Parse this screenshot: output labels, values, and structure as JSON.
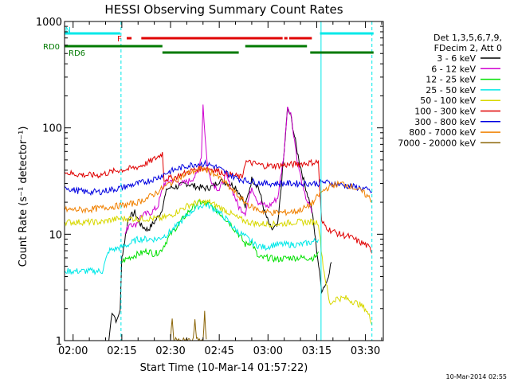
{
  "chart_data": {
    "type": "line",
    "title": "HESSI Observing Summary Count Rates",
    "xlabel": "Start Time (10-Mar-14 01:57:22)",
    "ylabel": "Count Rate (s⁻¹ detector⁻¹)",
    "y_scale": "log",
    "ylim": [
      1,
      1000
    ],
    "xlim": [
      "01:57:22",
      "03:35:30"
    ],
    "x_ticks": [
      "02:00",
      "02:15",
      "02:30",
      "02:45",
      "03:00",
      "03:15",
      "03:30"
    ],
    "y_ticks": [
      "1",
      "10",
      "100",
      "1000"
    ],
    "timestamp": "10-Mar-2014 02:55",
    "legend": {
      "position": "right",
      "header": [
        "Det 1,3,5,6,7,9,",
        "FDecim 2, Att 0"
      ]
    },
    "colors": {
      "3-6": "#000000",
      "6-12": "#d000d0",
      "12-25": "#00e000",
      "25-50": "#00e8e8",
      "50-100": "#d8d800",
      "100-300": "#e00000",
      "300-800": "#0000e0",
      "800-7000": "#f08000",
      "7000-20000": "#8b6508",
      "flag_rd0": "#007a00",
      "flag_rd6": "#007a00",
      "flag_flare": "#e00000",
      "flag_night": "#00e8e8"
    },
    "flags": {
      "N": {
        "label": "N",
        "intervals": [
          [
            "01:57:30",
            "02:14:30"
          ],
          [
            "03:16:00",
            "03:32:30"
          ]
        ]
      },
      "F": {
        "label": "F",
        "intervals": [
          [
            "02:16:30",
            "02:18:00"
          ],
          [
            "02:21:00",
            "03:04:30"
          ],
          [
            "03:05:00",
            "03:06:00"
          ],
          [
            "03:06:30",
            "03:13:30"
          ]
        ]
      },
      "RD0": {
        "label": "RD0",
        "intervals": [
          [
            "01:57:30",
            "02:27:30"
          ],
          [
            "02:53:00",
            "03:12:00"
          ]
        ]
      },
      "RD6": {
        "label": "RD6",
        "intervals": [
          [
            "02:27:30",
            "02:51:00"
          ],
          [
            "03:13:00",
            "03:32:30"
          ]
        ]
      }
    },
    "vlines": [
      "02:14:45",
      "03:16:20",
      "03:32:00"
    ],
    "series": [
      {
        "name": "3 - 6 keV",
        "values": [
          [
            "02:11:00",
            1.0
          ],
          [
            "02:12:00",
            1.9
          ],
          [
            "02:13:30",
            1.5
          ],
          [
            "02:14:30",
            2.0
          ],
          [
            "02:15:00",
            6
          ],
          [
            "02:17:00",
            14
          ],
          [
            "02:19:00",
            16
          ],
          [
            "02:21:00",
            12
          ],
          [
            "02:23:00",
            11
          ],
          [
            "02:25:00",
            13
          ],
          [
            "02:27:00",
            16
          ],
          [
            "02:29:00",
            27
          ],
          [
            "02:32:00",
            28
          ],
          [
            "02:35:00",
            30
          ],
          [
            "02:38:00",
            28
          ],
          [
            "02:41:00",
            27
          ],
          [
            "02:43:00",
            28
          ],
          [
            "02:45:00",
            32
          ],
          [
            "02:48:00",
            30
          ],
          [
            "02:50:00",
            28
          ],
          [
            "02:52:00",
            22
          ],
          [
            "02:53:00",
            18
          ],
          [
            "02:55:00",
            33
          ],
          [
            "02:57:00",
            28
          ],
          [
            "02:59:00",
            16
          ],
          [
            "03:01:00",
            11
          ],
          [
            "03:03:00",
            12
          ],
          [
            "03:05:00",
            60
          ],
          [
            "03:06:00",
            150
          ],
          [
            "03:07:00",
            130
          ],
          [
            "03:09:00",
            60
          ],
          [
            "03:11:00",
            32
          ],
          [
            "03:13:30",
            17
          ],
          [
            "03:16:30",
            3
          ],
          [
            "03:18:00",
            3.5
          ],
          [
            "03:19:30",
            5.5
          ]
        ]
      },
      {
        "name": "6 - 12 keV",
        "values": [
          [
            "02:16:00",
            10
          ],
          [
            "02:17:30",
            13
          ],
          [
            "02:19:00",
            12
          ],
          [
            "02:21:00",
            15
          ],
          [
            "02:24:00",
            16
          ],
          [
            "02:26:00",
            18
          ],
          [
            "02:28:00",
            30
          ],
          [
            "02:30:00",
            32
          ],
          [
            "02:32:00",
            31
          ],
          [
            "02:34:00",
            30
          ],
          [
            "02:36:00",
            32
          ],
          [
            "02:38:00",
            36
          ],
          [
            "02:39:30",
            55
          ],
          [
            "02:40:00",
            170
          ],
          [
            "02:40:40",
            80
          ],
          [
            "02:41:30",
            40
          ],
          [
            "02:43:00",
            30
          ],
          [
            "02:45:00",
            26
          ],
          [
            "02:47:00",
            36
          ],
          [
            "02:49:00",
            26
          ],
          [
            "02:51:00",
            18
          ],
          [
            "02:53:00",
            16
          ],
          [
            "02:55:00",
            28
          ],
          [
            "02:57:00",
            20
          ],
          [
            "03:00:00",
            18
          ],
          [
            "03:03:00",
            22
          ],
          [
            "03:05:00",
            60
          ],
          [
            "03:06:00",
            160
          ],
          [
            "03:07:00",
            140
          ],
          [
            "03:09:00",
            50
          ],
          [
            "03:11:00",
            25
          ],
          [
            "03:13:30",
            16
          ]
        ]
      },
      {
        "name": "12 - 25 keV",
        "values": [
          [
            "02:15:00",
            5.5
          ],
          [
            "02:17:00",
            6
          ],
          [
            "02:20:00",
            6.5
          ],
          [
            "02:23:00",
            7
          ],
          [
            "02:25:00",
            6.5
          ],
          [
            "02:27:00",
            7
          ],
          [
            "02:30:00",
            10
          ],
          [
            "02:33:00",
            13
          ],
          [
            "02:36:00",
            17
          ],
          [
            "02:39:00",
            20
          ],
          [
            "02:42:00",
            19
          ],
          [
            "02:45:00",
            16
          ],
          [
            "02:48:00",
            13
          ],
          [
            "02:51:00",
            10
          ],
          [
            "02:53:00",
            8
          ],
          [
            "02:55:00",
            8.5
          ],
          [
            "02:57:00",
            6
          ],
          [
            "03:00:00",
            6
          ],
          [
            "03:03:00",
            5.8
          ],
          [
            "03:06:00",
            6
          ],
          [
            "03:09:00",
            6
          ],
          [
            "03:12:00",
            6
          ],
          [
            "03:14:00",
            6
          ],
          [
            "03:15:30",
            6.5
          ]
        ]
      },
      {
        "name": "25 - 50 keV",
        "values": [
          [
            "01:57:30",
            4.5
          ],
          [
            "02:00:00",
            4.5
          ],
          [
            "02:05:00",
            4.5
          ],
          [
            "02:09:00",
            4.5
          ],
          [
            "02:11:00",
            7
          ],
          [
            "02:14:30",
            7.5
          ],
          [
            "02:17:00",
            8
          ],
          [
            "02:20:00",
            9
          ],
          [
            "02:23:00",
            9
          ],
          [
            "02:26:00",
            9
          ],
          [
            "02:29:00",
            10
          ],
          [
            "02:32:00",
            12
          ],
          [
            "02:35:00",
            15
          ],
          [
            "02:38:00",
            18
          ],
          [
            "02:41:00",
            19
          ],
          [
            "02:44:00",
            17
          ],
          [
            "02:47:00",
            14
          ],
          [
            "02:50:00",
            11
          ],
          [
            "02:53:00",
            9.5
          ],
          [
            "02:56:00",
            8
          ],
          [
            "02:59:00",
            7.5
          ],
          [
            "03:02:00",
            8
          ],
          [
            "03:06:00",
            8
          ],
          [
            "03:10:00",
            8
          ],
          [
            "03:14:00",
            8.5
          ],
          [
            "03:15:30",
            9
          ]
        ]
      },
      {
        "name": "50 - 100 keV",
        "values": [
          [
            "01:57:30",
            13
          ],
          [
            "02:00:00",
            13
          ],
          [
            "02:05:00",
            13
          ],
          [
            "02:09:00",
            13
          ],
          [
            "02:11:00",
            13.5
          ],
          [
            "02:14:00",
            14
          ],
          [
            "02:17:00",
            14
          ],
          [
            "02:20:00",
            14
          ],
          [
            "02:24:00",
            14
          ],
          [
            "02:27:00",
            14
          ],
          [
            "02:30:00",
            15
          ],
          [
            "02:33:00",
            17
          ],
          [
            "02:36:00",
            19
          ],
          [
            "02:39:00",
            20
          ],
          [
            "02:42:00",
            20
          ],
          [
            "02:45:00",
            18
          ],
          [
            "02:48:00",
            16
          ],
          [
            "02:51:00",
            14
          ],
          [
            "02:54:00",
            13
          ],
          [
            "02:57:00",
            12.5
          ],
          [
            "03:00:00",
            12.5
          ],
          [
            "03:04:00",
            12.5
          ],
          [
            "03:08:00",
            13
          ],
          [
            "03:12:00",
            13
          ],
          [
            "03:15:30",
            13
          ],
          [
            "03:17:00",
            5
          ],
          [
            "03:19:00",
            2.2
          ],
          [
            "03:21:00",
            2.5
          ],
          [
            "03:24:00",
            2.5
          ],
          [
            "03:28:00",
            2.2
          ],
          [
            "03:30:00",
            2.0
          ],
          [
            "03:32:00",
            1.5
          ]
        ]
      },
      {
        "name": "100 - 300 keV",
        "values": [
          [
            "01:57:30",
            38
          ],
          [
            "02:00:00",
            37
          ],
          [
            "02:04:00",
            36
          ],
          [
            "02:08:00",
            36
          ],
          [
            "02:11:00",
            38
          ],
          [
            "02:14:00",
            40
          ],
          [
            "02:17:00",
            41
          ],
          [
            "02:20:00",
            43
          ],
          [
            "02:23:00",
            47
          ],
          [
            "02:26:00",
            53
          ],
          [
            "02:27:30",
            58
          ],
          [
            "02:28:00",
            33
          ],
          [
            "02:31:00",
            34
          ],
          [
            "02:34:00",
            37
          ],
          [
            "02:37:00",
            40
          ],
          [
            "02:40:00",
            42
          ],
          [
            "02:43:00",
            41
          ],
          [
            "02:46:00",
            38
          ],
          [
            "02:49:00",
            36
          ],
          [
            "02:52:00",
            34
          ],
          [
            "02:53:00",
            48
          ],
          [
            "02:56:00",
            46
          ],
          [
            "02:59:00",
            44
          ],
          [
            "03:02:00",
            44
          ],
          [
            "03:06:00",
            45
          ],
          [
            "03:10:00",
            46
          ],
          [
            "03:13:00",
            47
          ],
          [
            "03:15:30",
            48
          ],
          [
            "03:16:30",
            13
          ],
          [
            "03:19:00",
            11
          ],
          [
            "03:22:00",
            10
          ],
          [
            "03:25:00",
            9.5
          ],
          [
            "03:28:00",
            8.5
          ],
          [
            "03:30:00",
            8
          ],
          [
            "03:32:00",
            7
          ]
        ]
      },
      {
        "name": "300 - 800 keV",
        "values": [
          [
            "01:57:30",
            28
          ],
          [
            "02:00:00",
            26
          ],
          [
            "02:04:00",
            25
          ],
          [
            "02:08:00",
            25
          ],
          [
            "02:11:00",
            26
          ],
          [
            "02:14:00",
            27
          ],
          [
            "02:18:00",
            29
          ],
          [
            "02:22:00",
            31
          ],
          [
            "02:26:00",
            34
          ],
          [
            "02:29:00",
            38
          ],
          [
            "02:32:00",
            41
          ],
          [
            "02:35:00",
            44
          ],
          [
            "02:38:00",
            46
          ],
          [
            "02:41:00",
            46
          ],
          [
            "02:44:00",
            43
          ],
          [
            "02:47:00",
            38
          ],
          [
            "02:50:00",
            34
          ],
          [
            "02:53:00",
            32
          ],
          [
            "02:56:00",
            31
          ],
          [
            "02:59:00",
            30
          ],
          [
            "03:02:00",
            30
          ],
          [
            "03:06:00",
            30
          ],
          [
            "03:10:00",
            30
          ],
          [
            "03:13:00",
            30
          ],
          [
            "03:15:30",
            30
          ],
          [
            "03:17:00",
            31
          ],
          [
            "03:20:00",
            30
          ],
          [
            "03:23:00",
            29
          ],
          [
            "03:26:00",
            28
          ],
          [
            "03:29:00",
            27
          ],
          [
            "03:32:00",
            25
          ]
        ]
      },
      {
        "name": "800 - 7000 keV",
        "values": [
          [
            "01:57:30",
            17
          ],
          [
            "02:00:00",
            17
          ],
          [
            "02:04:00",
            17
          ],
          [
            "02:08:00",
            17.5
          ],
          [
            "02:11:00",
            18
          ],
          [
            "02:14:00",
            18.5
          ],
          [
            "02:17:00",
            19
          ],
          [
            "02:20:00",
            20
          ],
          [
            "02:23:00",
            22
          ],
          [
            "02:26:00",
            25
          ],
          [
            "02:29:00",
            29
          ],
          [
            "02:32:00",
            33
          ],
          [
            "02:35:00",
            37
          ],
          [
            "02:38:00",
            40
          ],
          [
            "02:40:00",
            41
          ],
          [
            "02:43:00",
            38
          ],
          [
            "02:46:00",
            32
          ],
          [
            "02:49:00",
            26
          ],
          [
            "02:52:00",
            21
          ],
          [
            "02:55:00",
            18
          ],
          [
            "02:58:00",
            16.5
          ],
          [
            "03:01:00",
            16
          ],
          [
            "03:05:00",
            16
          ],
          [
            "03:09:00",
            16.5
          ],
          [
            "03:12:00",
            18
          ],
          [
            "03:14:00",
            20
          ],
          [
            "03:16:00",
            24
          ],
          [
            "03:18:00",
            27
          ],
          [
            "03:20:00",
            29
          ],
          [
            "03:23:00",
            30
          ],
          [
            "03:26:00",
            28
          ],
          [
            "03:29:00",
            25
          ],
          [
            "03:32:00",
            21
          ]
        ]
      },
      {
        "name": "7000 - 20000 keV",
        "values": [
          [
            "02:30:00",
            1.0
          ],
          [
            "02:30:30",
            1.7
          ],
          [
            "02:31:00",
            1.0
          ],
          [
            "02:37:00",
            1.0
          ],
          [
            "02:37:30",
            1.6
          ],
          [
            "02:38:00",
            1.0
          ],
          [
            "02:40:00",
            1.0
          ],
          [
            "02:40:30",
            1.8
          ],
          [
            "02:41:00",
            1.0
          ]
        ]
      }
    ]
  }
}
